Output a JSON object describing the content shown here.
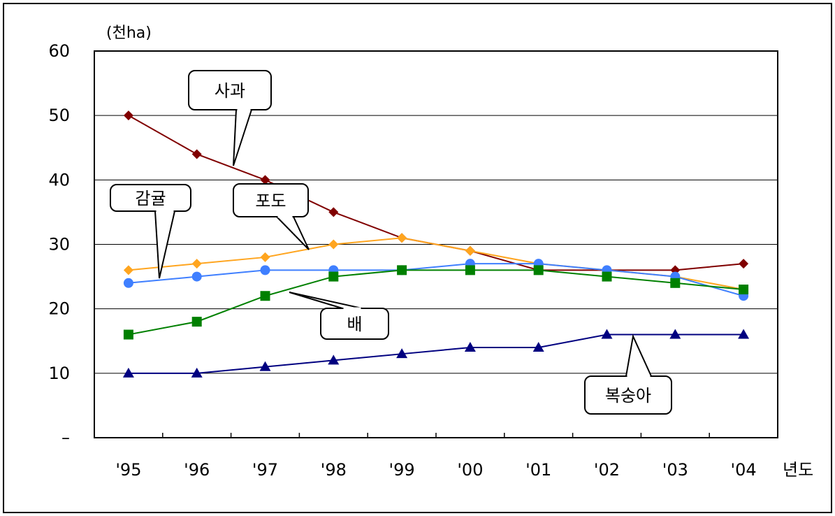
{
  "chart_data": {
    "type": "line",
    "title": "",
    "ylabel": "(천ha)",
    "xlabel": "년도",
    "categories": [
      "'95",
      "'96",
      "'97",
      "'98",
      "'99",
      "'00",
      "'01",
      "'02",
      "'03",
      "'04"
    ],
    "ylim": [
      0,
      60
    ],
    "yticks": [
      {
        "value": 0,
        "label": "–"
      },
      {
        "value": 10,
        "label": "10"
      },
      {
        "value": 20,
        "label": "20"
      },
      {
        "value": 30,
        "label": "30"
      },
      {
        "value": 40,
        "label": "40"
      },
      {
        "value": 50,
        "label": "50"
      },
      {
        "value": 60,
        "label": "60"
      }
    ],
    "grid": true,
    "legend": "callouts",
    "series": [
      {
        "name": "사과",
        "color": "#800000",
        "marker": "diamond",
        "values": [
          50,
          44,
          40,
          35,
          31,
          29,
          26,
          26,
          26,
          27
        ]
      },
      {
        "name": "포도",
        "color": "#FFA51F",
        "marker": "diamond",
        "values": [
          26,
          27,
          28,
          30,
          31,
          29,
          27,
          26,
          25,
          23
        ]
      },
      {
        "name": "감귤",
        "color": "#3F7FFF",
        "marker": "circle",
        "values": [
          24,
          25,
          26,
          26,
          26,
          27,
          27,
          26,
          25,
          22
        ]
      },
      {
        "name": "배",
        "color": "#008000",
        "marker": "square",
        "values": [
          16,
          18,
          22,
          25,
          26,
          26,
          26,
          25,
          24,
          23
        ]
      },
      {
        "name": "복숭아",
        "color": "#000080",
        "marker": "triangle",
        "values": [
          10,
          10,
          11,
          12,
          13,
          14,
          14,
          16,
          16,
          16
        ]
      }
    ]
  }
}
